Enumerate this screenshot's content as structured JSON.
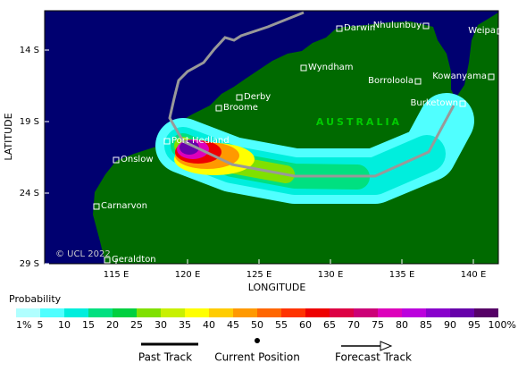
{
  "map": {
    "latitude_label": "LATITUDE",
    "longitude_label": "LONGITUDE",
    "lat_ticks": [
      "14 S",
      "19 S",
      "24 S",
      "29 S"
    ],
    "lon_ticks": [
      "115 E",
      "120 E",
      "125 E",
      "130 E",
      "135 E",
      "140 E"
    ],
    "places": [
      "Darwin",
      "Nhulunbuy",
      "Weipa",
      "Wyndham",
      "Kowanyama",
      "Borroloola",
      "Derby",
      "Broome",
      "Burketown",
      "Port Hedland",
      "Onslow",
      "Carnarvon",
      "Geraldton"
    ],
    "region_label": "AUSTRALIA",
    "copyright": "© UCL 2022"
  },
  "colorbar": {
    "title": "Probability",
    "labels": [
      "1%",
      "5",
      "10",
      "15",
      "20",
      "25",
      "30",
      "35",
      "40",
      "45",
      "50",
      "55",
      "60",
      "65",
      "70",
      "75",
      "80",
      "85",
      "90",
      "95",
      "100%"
    ],
    "colors": [
      "#b0ffff",
      "#50ffff",
      "#00eedd",
      "#00e080",
      "#00d040",
      "#80e000",
      "#c8f000",
      "#ffff00",
      "#ffcc00",
      "#ff9900",
      "#ff6600",
      "#ff3300",
      "#ee0000",
      "#dd0044",
      "#cc0077",
      "#dd00bb",
      "#bb00dd",
      "#8800cc",
      "#6600aa",
      "#550066"
    ]
  },
  "legend": {
    "past": "Past Track",
    "current": "Current Position",
    "forecast": "Forecast Track"
  }
}
